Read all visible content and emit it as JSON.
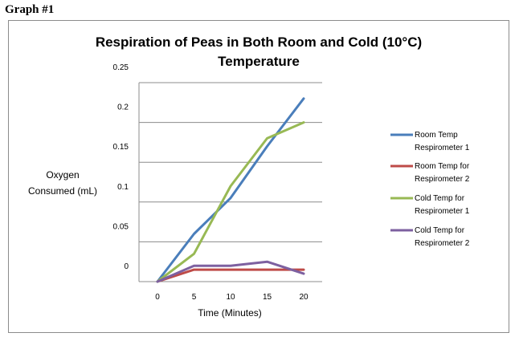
{
  "heading": "Graph #1",
  "chart_data": {
    "type": "line",
    "title_lines": [
      "Respiration of Peas in Both Room and Cold (10°C)",
      "Temperature"
    ],
    "xlabel": "Time (Minutes)",
    "ylabel_lines": [
      "Oxygen",
      "Consumed (mL)"
    ],
    "x": [
      0,
      5,
      10,
      15,
      20
    ],
    "x_ticks": [
      "0",
      "5",
      "10",
      "15",
      "20"
    ],
    "y_ticks": [
      "0",
      "0.05",
      "0.1",
      "0.15",
      "0.2",
      "0.25"
    ],
    "ylim": [
      0,
      0.25
    ],
    "grid": true,
    "legend_position": "right",
    "series": [
      {
        "legend_lines": [
          "Room Temp",
          "Respirometer 1"
        ],
        "color": "#4a7ebb",
        "values": [
          0,
          0.06,
          0.105,
          0.17,
          0.23
        ]
      },
      {
        "legend_lines": [
          "Room Temp for",
          "Respirometer 2"
        ],
        "color": "#be4b48",
        "values": [
          0,
          0.015,
          0.015,
          0.015,
          0.015
        ]
      },
      {
        "legend_lines": [
          "Cold Temp for",
          "Respirometer 1"
        ],
        "color": "#98b954",
        "values": [
          0,
          0.035,
          0.12,
          0.18,
          0.2
        ]
      },
      {
        "legend_lines": [
          "Cold Temp for",
          "Respirometer 2"
        ],
        "color": "#7d60a0",
        "values": [
          0,
          0.02,
          0.02,
          0.025,
          0.01
        ]
      }
    ]
  }
}
